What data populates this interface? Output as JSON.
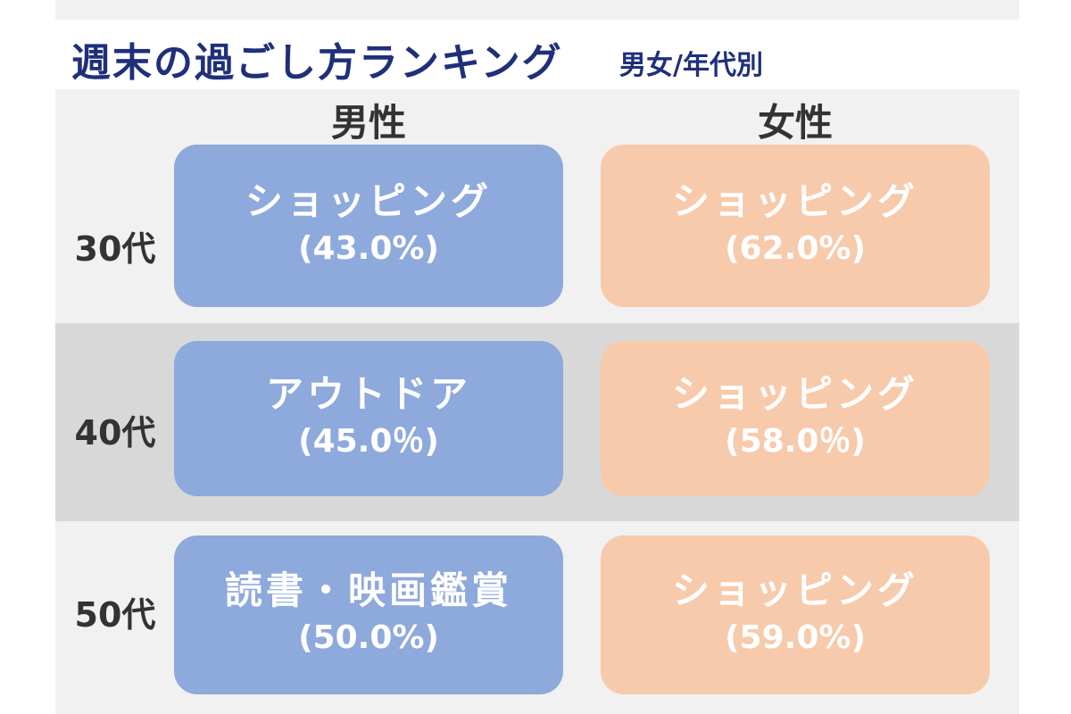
{
  "header": {
    "title": "週末の過ごし方ランキング",
    "subtitle": "男女/年代別"
  },
  "colors": {
    "male_card": "#8ea9db",
    "female_card": "#f7caac",
    "band_light": "#f1f1f1",
    "band_dark": "#d8d8d8",
    "title_color": "#1f2f7a"
  },
  "chart_data": {
    "type": "table",
    "title": "週末の過ごし方ランキング",
    "subtitle": "男女/年代別",
    "columns": [
      "男性",
      "女性"
    ],
    "rows": [
      {
        "label": "30代",
        "male": {
          "activity": "ショッピング",
          "share_text": "(43.0%)",
          "value": 43.0
        },
        "female": {
          "activity": "ショッピング",
          "share_text": "(62.0%)",
          "value": 62.0
        }
      },
      {
        "label": "40代",
        "male": {
          "activity": "アウトドア",
          "share_text": "(45.0％)",
          "value": 45.0
        },
        "female": {
          "activity": "ショッピング",
          "share_text": "(58.0％)",
          "value": 58.0
        }
      },
      {
        "label": "50代",
        "male": {
          "activity": "読書・映画鑑賞",
          "share_text": "(50.0%)",
          "value": 50.0
        },
        "female": {
          "activity": "ショッピング",
          "share_text": "(59.0%)",
          "value": 59.0
        }
      }
    ]
  }
}
